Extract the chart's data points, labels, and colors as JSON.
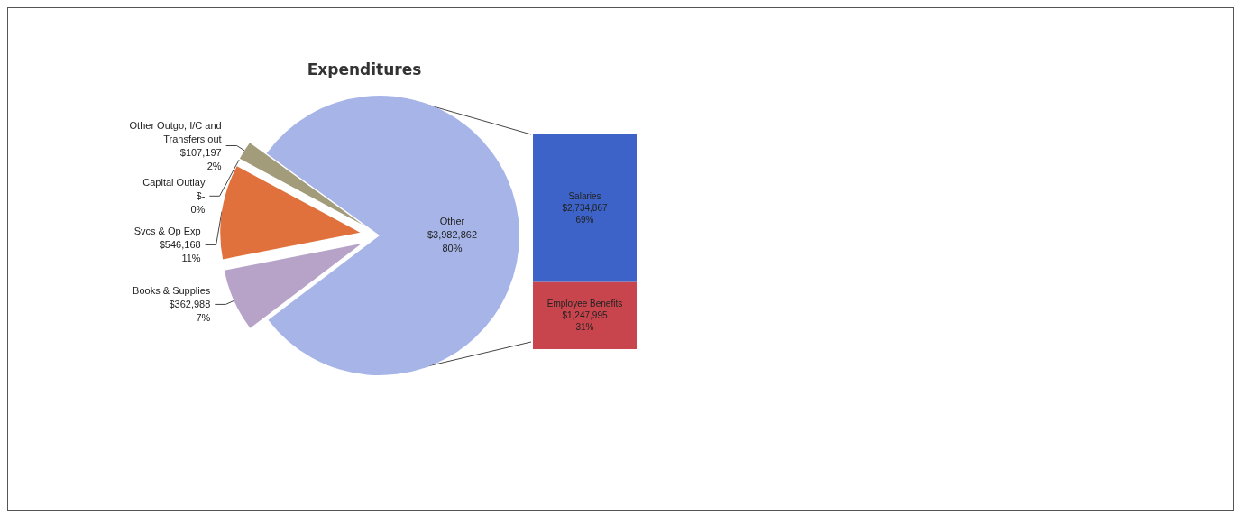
{
  "chart_data": [
    {
      "type": "pie",
      "title": "Expenditures",
      "categories": [
        "Other Outgo, I/C and\nTransfers out",
        "Capital Outlay",
        "Svcs & Op Exp",
        "Books & Supplies",
        "Other"
      ],
      "values": [
        107197,
        0,
        546168,
        362988,
        3982862
      ],
      "colors": [
        "#a39c7a",
        "#8c6b3a",
        "#e0703c",
        "#b8a3c8",
        "#a6b4e8"
      ],
      "value_labels": [
        "$107,197\n2%",
        "$-\n0%",
        "$546,168\n11%",
        "$362,988\n7%",
        "$3,982,862\n80%"
      ]
    },
    {
      "type": "bar",
      "stacked": true,
      "tick_labels": false,
      "categories": [
        null
      ],
      "series": [
        {
          "name": "Employee Benefits",
          "color": "#c8454e",
          "values": [
            1247995
          ],
          "value_labels": [
            "$1,247,995\n31%"
          ]
        },
        {
          "name": "Salaries",
          "color": "#3e63c8",
          "values": [
            2734867
          ],
          "value_labels": [
            "$2,734,867\n69%"
          ]
        }
      ]
    }
  ]
}
